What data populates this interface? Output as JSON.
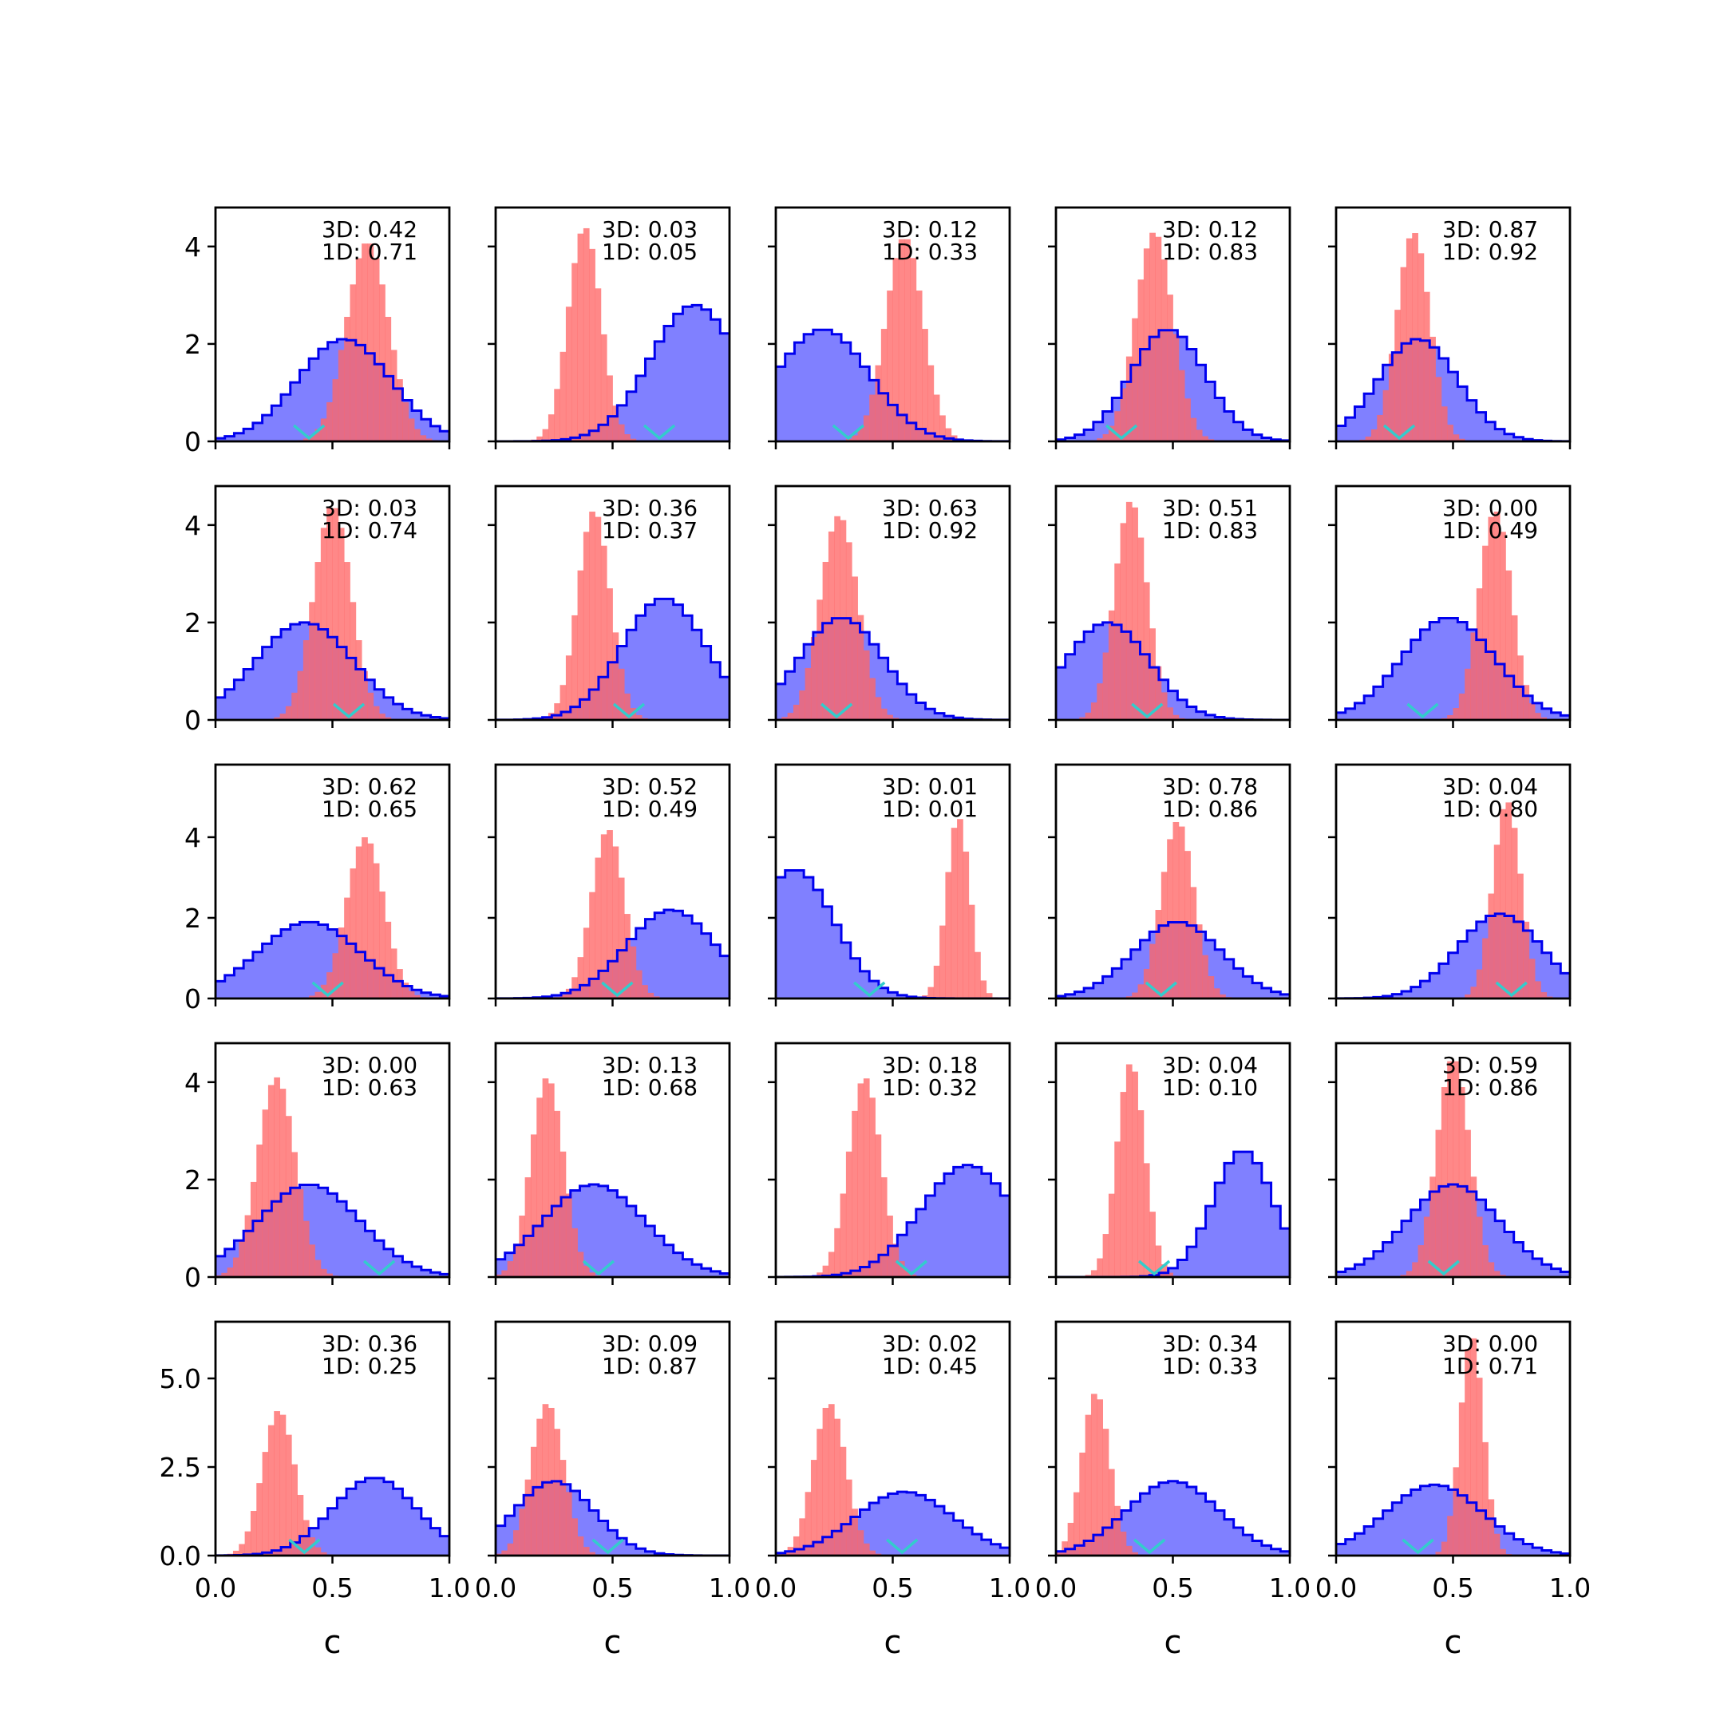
{
  "chart_data": {
    "type": "histogram-grid",
    "rows": 5,
    "cols": 5,
    "xlabel": "c",
    "xlim": [
      0,
      1
    ],
    "x_ticks": [
      "0.0",
      "0.5",
      "1.0"
    ],
    "row_ylim": [
      [
        0,
        4.8
      ],
      [
        0,
        4.8
      ],
      [
        0,
        5.8
      ],
      [
        0,
        4.8
      ],
      [
        0,
        6.6
      ]
    ],
    "row_yticks": [
      [
        {
          "v": 0,
          "label": "0"
        },
        {
          "v": 2,
          "label": "2"
        },
        {
          "v": 4,
          "label": "4"
        }
      ],
      [
        {
          "v": 0,
          "label": "0"
        },
        {
          "v": 2,
          "label": "2"
        },
        {
          "v": 4,
          "label": "4"
        }
      ],
      [
        {
          "v": 0,
          "label": "0"
        },
        {
          "v": 2,
          "label": "2"
        },
        {
          "v": 4,
          "label": "4"
        }
      ],
      [
        {
          "v": 0,
          "label": "0"
        },
        {
          "v": 2,
          "label": "2"
        },
        {
          "v": 4,
          "label": "4"
        }
      ],
      [
        {
          "v": 0,
          "label": "0.0"
        },
        {
          "v": 2.5,
          "label": "2.5"
        },
        {
          "v": 5,
          "label": "5.0"
        }
      ]
    ],
    "colors": {
      "wide": "#0000ee",
      "wide_fill": "#8080ff",
      "narrow": "#ff6666",
      "marker": "#33cccc"
    },
    "panels": [
      {
        "row": 0,
        "col": 0,
        "label_3d": "3D: 0.42",
        "label_1d": "1D: 0.71",
        "wide": {
          "mu": 0.55,
          "sd": 0.2,
          "peak": 2.1
        },
        "narrow": {
          "mu": 0.65,
          "sd": 0.09,
          "peak": 4.1
        },
        "marker": 0.4
      },
      {
        "row": 0,
        "col": 1,
        "label_3d": "3D: 0.03",
        "label_1d": "1D: 0.05",
        "wide": {
          "mu": 0.85,
          "sd": 0.19,
          "peak": 2.8
        },
        "narrow": {
          "mu": 0.38,
          "sd": 0.07,
          "peak": 4.4
        },
        "marker": 0.7
      },
      {
        "row": 0,
        "col": 2,
        "label_3d": "3D: 0.12",
        "label_1d": "1D: 0.33",
        "wide": {
          "mu": 0.2,
          "sd": 0.2,
          "peak": 2.3
        },
        "narrow": {
          "mu": 0.55,
          "sd": 0.08,
          "peak": 4.2
        },
        "marker": 0.31
      },
      {
        "row": 0,
        "col": 3,
        "label_3d": "3D: 0.12",
        "label_1d": "1D: 0.83",
        "wide": {
          "mu": 0.48,
          "sd": 0.16,
          "peak": 2.3
        },
        "narrow": {
          "mu": 0.42,
          "sd": 0.08,
          "peak": 4.3
        },
        "marker": 0.28
      },
      {
        "row": 0,
        "col": 4,
        "label_3d": "3D: 0.87",
        "label_1d": "1D: 0.92",
        "wide": {
          "mu": 0.35,
          "sd": 0.17,
          "peak": 2.1
        },
        "narrow": {
          "mu": 0.33,
          "sd": 0.07,
          "peak": 4.3
        },
        "marker": 0.27
      },
      {
        "row": 1,
        "col": 0,
        "label_3d": "3D: 0.03",
        "label_1d": "1D: 0.74",
        "wide": {
          "mu": 0.38,
          "sd": 0.21,
          "peak": 2.0
        },
        "narrow": {
          "mu": 0.5,
          "sd": 0.08,
          "peak": 4.4
        },
        "marker": 0.57
      },
      {
        "row": 1,
        "col": 1,
        "label_3d": "3D: 0.36",
        "label_1d": "1D: 0.37",
        "wide": {
          "mu": 0.72,
          "sd": 0.18,
          "peak": 2.5
        },
        "narrow": {
          "mu": 0.42,
          "sd": 0.07,
          "peak": 4.3
        },
        "marker": 0.57
      },
      {
        "row": 1,
        "col": 2,
        "label_3d": "3D: 0.63",
        "label_1d": "1D: 0.92",
        "wide": {
          "mu": 0.28,
          "sd": 0.18,
          "peak": 2.1
        },
        "narrow": {
          "mu": 0.27,
          "sd": 0.08,
          "peak": 4.2
        },
        "marker": 0.26
      },
      {
        "row": 1,
        "col": 3,
        "label_3d": "3D: 0.51",
        "label_1d": "1D: 0.83",
        "wide": {
          "mu": 0.22,
          "sd": 0.18,
          "peak": 2.0
        },
        "narrow": {
          "mu": 0.32,
          "sd": 0.07,
          "peak": 4.5
        },
        "marker": 0.39
      },
      {
        "row": 1,
        "col": 4,
        "label_3d": "3D: 0.00",
        "label_1d": "1D: 0.49",
        "wide": {
          "mu": 0.48,
          "sd": 0.2,
          "peak": 2.1
        },
        "narrow": {
          "mu": 0.68,
          "sd": 0.07,
          "peak": 4.3
        },
        "marker": 0.37
      },
      {
        "row": 2,
        "col": 0,
        "label_3d": "3D: 0.62",
        "label_1d": "1D: 0.65",
        "wide": {
          "mu": 0.4,
          "sd": 0.22,
          "peak": 1.9
        },
        "narrow": {
          "mu": 0.64,
          "sd": 0.08,
          "peak": 4.0
        },
        "marker": 0.48
      },
      {
        "row": 2,
        "col": 1,
        "label_3d": "3D: 0.52",
        "label_1d": "1D: 0.49",
        "wide": {
          "mu": 0.75,
          "sd": 0.19,
          "peak": 2.2
        },
        "narrow": {
          "mu": 0.48,
          "sd": 0.07,
          "peak": 4.2
        },
        "marker": 0.52
      },
      {
        "row": 2,
        "col": 2,
        "label_3d": "3D: 0.01",
        "label_1d": "1D: 0.01",
        "wide": {
          "mu": 0.08,
          "sd": 0.17,
          "peak": 3.2
        },
        "narrow": {
          "mu": 0.78,
          "sd": 0.05,
          "peak": 4.5
        },
        "marker": 0.4
      },
      {
        "row": 2,
        "col": 3,
        "label_3d": "3D: 0.78",
        "label_1d": "1D: 0.86",
        "wide": {
          "mu": 0.52,
          "sd": 0.19,
          "peak": 1.9
        },
        "narrow": {
          "mu": 0.52,
          "sd": 0.07,
          "peak": 4.4
        },
        "marker": 0.45
      },
      {
        "row": 2,
        "col": 4,
        "label_3d": "3D: 0.04",
        "label_1d": "1D: 0.80",
        "wide": {
          "mu": 0.7,
          "sd": 0.18,
          "peak": 2.1
        },
        "narrow": {
          "mu": 0.73,
          "sd": 0.06,
          "peak": 4.9
        },
        "marker": 0.75
      },
      {
        "row": 3,
        "col": 0,
        "label_3d": "3D: 0.00",
        "label_1d": "1D: 0.63",
        "wide": {
          "mu": 0.4,
          "sd": 0.22,
          "peak": 1.9
        },
        "narrow": {
          "mu": 0.26,
          "sd": 0.08,
          "peak": 4.1
        },
        "marker": 0.7
      },
      {
        "row": 3,
        "col": 1,
        "label_3d": "3D: 0.13",
        "label_1d": "1D: 0.68",
        "wide": {
          "mu": 0.42,
          "sd": 0.22,
          "peak": 1.9
        },
        "narrow": {
          "mu": 0.22,
          "sd": 0.07,
          "peak": 4.1
        },
        "marker": 0.44
      },
      {
        "row": 3,
        "col": 2,
        "label_3d": "3D: 0.18",
        "label_1d": "1D: 0.32",
        "wide": {
          "mu": 0.82,
          "sd": 0.2,
          "peak": 2.3
        },
        "narrow": {
          "mu": 0.38,
          "sd": 0.07,
          "peak": 4.1
        },
        "marker": 0.58
      },
      {
        "row": 3,
        "col": 3,
        "label_3d": "3D: 0.04",
        "label_1d": "1D: 0.10",
        "wide": {
          "mu": 0.8,
          "sd": 0.13,
          "peak": 2.6
        },
        "narrow": {
          "mu": 0.32,
          "sd": 0.06,
          "peak": 4.4
        },
        "marker": 0.42
      },
      {
        "row": 3,
        "col": 4,
        "label_3d": "3D: 0.59",
        "label_1d": "1D: 0.86",
        "wide": {
          "mu": 0.5,
          "sd": 0.2,
          "peak": 1.9
        },
        "narrow": {
          "mu": 0.5,
          "sd": 0.07,
          "peak": 4.5
        },
        "marker": 0.46
      },
      {
        "row": 4,
        "col": 0,
        "label_3d": "3D: 0.36",
        "label_1d": "1D: 0.25",
        "wide": {
          "mu": 0.68,
          "sd": 0.18,
          "peak": 2.2
        },
        "narrow": {
          "mu": 0.27,
          "sd": 0.07,
          "peak": 4.1
        },
        "marker": 0.38
      },
      {
        "row": 4,
        "col": 1,
        "label_3d": "3D: 0.09",
        "label_1d": "1D: 0.87",
        "wide": {
          "mu": 0.25,
          "sd": 0.17,
          "peak": 2.1
        },
        "narrow": {
          "mu": 0.22,
          "sd": 0.07,
          "peak": 4.3
        },
        "marker": 0.48
      },
      {
        "row": 4,
        "col": 2,
        "label_3d": "3D: 0.02",
        "label_1d": "1D: 0.45",
        "wide": {
          "mu": 0.55,
          "sd": 0.21,
          "peak": 1.8
        },
        "narrow": {
          "mu": 0.23,
          "sd": 0.07,
          "peak": 4.3
        },
        "marker": 0.54
      },
      {
        "row": 4,
        "col": 3,
        "label_3d": "3D: 0.34",
        "label_1d": "1D: 0.33",
        "wide": {
          "mu": 0.5,
          "sd": 0.2,
          "peak": 2.1
        },
        "narrow": {
          "mu": 0.17,
          "sd": 0.06,
          "peak": 4.6
        },
        "marker": 0.4
      },
      {
        "row": 4,
        "col": 4,
        "label_3d": "3D: 0.00",
        "label_1d": "1D: 0.71",
        "wide": {
          "mu": 0.42,
          "sd": 0.21,
          "peak": 2.0
        },
        "narrow": {
          "mu": 0.58,
          "sd": 0.05,
          "peak": 6.2
        },
        "marker": 0.35
      }
    ]
  }
}
